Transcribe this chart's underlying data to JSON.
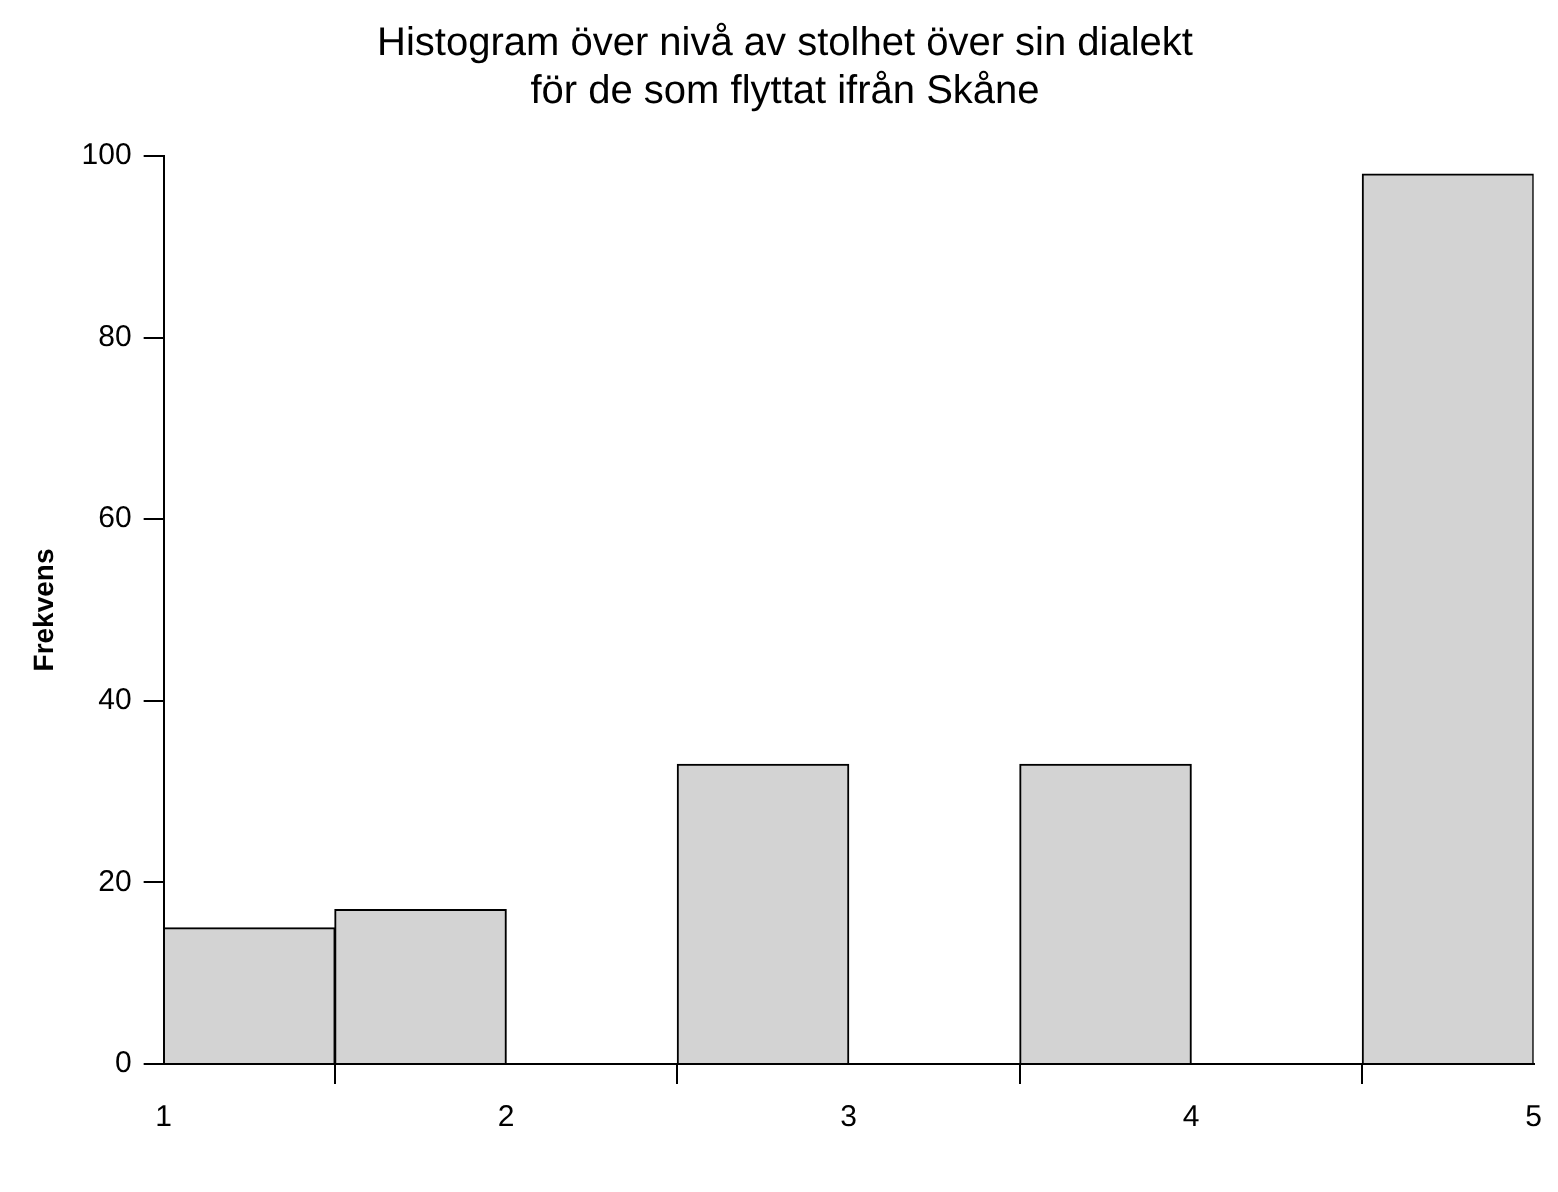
{
  "chart_data": {
    "type": "histogram",
    "title": "Histogram över nivå av stolhet över sin dialekt\nför de som flyttat ifrån Skåne",
    "ylabel": "Frekvens",
    "bins": [
      1,
      1.5,
      2,
      2.5,
      3,
      3.5,
      4,
      4.5,
      5
    ],
    "values": [
      15,
      17,
      0,
      33,
      0,
      33,
      0,
      98
    ],
    "color": "#d3d3d3",
    "xlim": [
      1,
      5
    ],
    "xticks": [
      1,
      2,
      3,
      4,
      5
    ],
    "ylim": [
      0,
      100
    ],
    "yticks": [
      0,
      20,
      40,
      60,
      80,
      100
    ],
    "grid": false,
    "legend": false
  }
}
